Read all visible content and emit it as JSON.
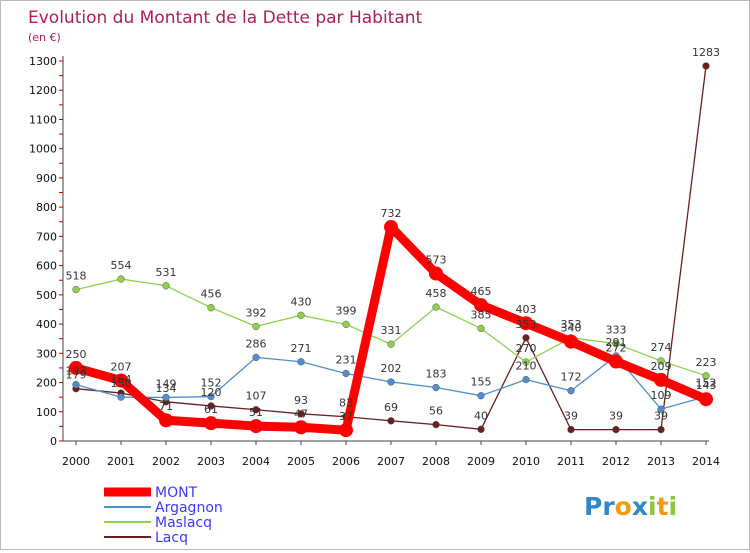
{
  "chart_data": {
    "type": "line",
    "title": "Evolution du Montant de la Dette par Habitant",
    "subtitle": "(en €)",
    "x": [
      "2000",
      "2001",
      "2002",
      "2003",
      "2004",
      "2005",
      "2006",
      "2007",
      "2008",
      "2009",
      "2010",
      "2011",
      "2012",
      "2013",
      "2014"
    ],
    "y_ticks": [
      0,
      100,
      200,
      300,
      400,
      500,
      600,
      700,
      800,
      900,
      1000,
      1100,
      1200,
      1300
    ],
    "ylim": [
      0,
      1300
    ],
    "grid": false,
    "legend": "bottom-left",
    "series": [
      {
        "name": "MONT",
        "color": "#ff0000",
        "values": [
          250,
          207,
          71,
          61,
          51,
          47,
          37,
          732,
          573,
          465,
          403,
          340,
          272,
          209,
          143
        ]
      },
      {
        "name": "Argagnon",
        "color": "#4f8fcf",
        "values": [
          193,
          150,
          149,
          152,
          286,
          271,
          231,
          202,
          183,
          155,
          210,
          172,
          291,
          109,
          152
        ]
      },
      {
        "name": "Maslacq",
        "color": "#8fd14f",
        "values": [
          518,
          554,
          531,
          456,
          392,
          430,
          399,
          331,
          458,
          385,
          270,
          353,
          333,
          274,
          223
        ]
      },
      {
        "name": "Lacq",
        "color": "#6b1f1f",
        "values": [
          179,
          164,
          134,
          120,
          107,
          93,
          83,
          69,
          56,
          40,
          353,
          39,
          39,
          39,
          1283
        ]
      }
    ],
    "data_labels": [
      {
        "name": "MONT",
        "labels": [
          "250",
          "207",
          "71",
          "61",
          "51",
          "47",
          "37",
          "732",
          "573",
          "465",
          "403",
          "340",
          "272",
          "209",
          "143"
        ]
      },
      {
        "name": "Argagnon",
        "labels": [
          "193",
          "150",
          "149",
          "152",
          "286",
          "271",
          "231",
          "202",
          "183",
          "155",
          "210",
          "172",
          "291",
          "109",
          "152"
        ]
      },
      {
        "name": "Maslacq",
        "labels": [
          "518",
          "554",
          "531",
          "456",
          "392",
          "430",
          "399",
          "331",
          "458",
          "385",
          "270",
          "353",
          "333",
          "274",
          "223"
        ]
      },
      {
        "name": "Lacq",
        "labels": [
          "179",
          "164",
          "134",
          "120",
          "107",
          "93",
          "83",
          "69",
          "56",
          "40",
          "353",
          "39",
          "39",
          "39",
          "1283"
        ]
      }
    ]
  },
  "legend": {
    "items": [
      {
        "label": "MONT",
        "color": "#ff0000"
      },
      {
        "label": "Argagnon",
        "color": "#4f8fcf"
      },
      {
        "label": "Maslacq",
        "color": "#8fd14f"
      },
      {
        "label": "Lacq",
        "color": "#6b1f1f"
      }
    ]
  },
  "brand": {
    "letters": [
      "P",
      "r",
      "o",
      "x",
      "i",
      "t",
      "i"
    ],
    "colors": [
      "#2f86c8",
      "#2f86c8",
      "#f39c12",
      "#2f86c8",
      "#8cc63f",
      "#f39c12",
      "#8cc63f"
    ]
  }
}
